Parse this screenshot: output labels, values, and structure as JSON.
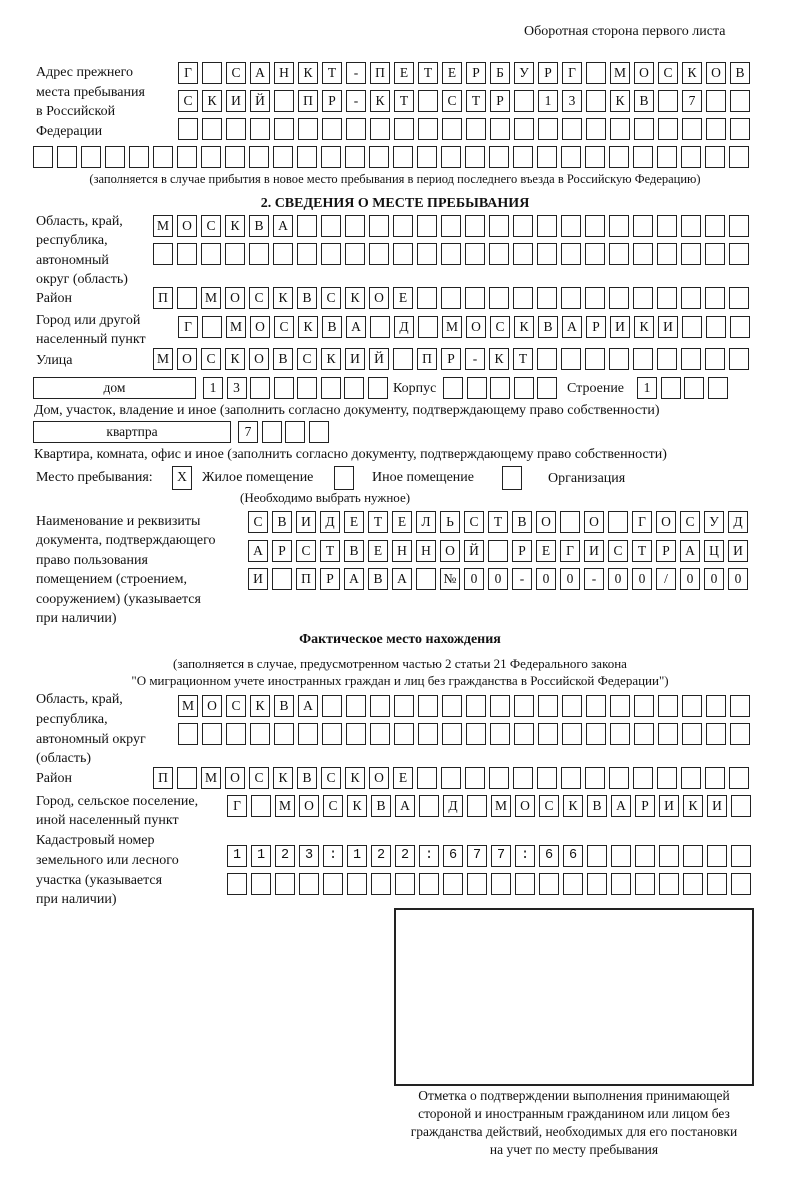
{
  "header": {
    "page_side": "Оборотная сторона первого листа"
  },
  "prev_address": {
    "label": [
      "Адрес прежнего",
      "места пребывания",
      "в Российской",
      "Федерации"
    ],
    "rows": [
      "Г САНКТ-ПЕТЕРБУРГ МОСКОВ",
      "СКИЙ ПР-КТ СТР 13 КВ 7  ",
      "                        ",
      "                              "
    ],
    "note": "(заполняется в случае прибытия в новое место пребывания в период последнего въезда в Российскую Федерацию)"
  },
  "stay": {
    "title": "2. СВЕДЕНИЯ О МЕСТЕ ПРЕБЫВАНИЯ",
    "region_label": [
      "Область, край,",
      "республика,",
      "автономный",
      "округ (область)"
    ],
    "region_rows": [
      "МОСКВА                   ",
      "                         "
    ],
    "district_label": "Район",
    "district": "П МОСКВСКОЕ              ",
    "city_label": [
      "Город или другой",
      "населенный пункт"
    ],
    "city": "Г МОСКВА Д МОСКВАРИКИ   ",
    "street_label": "Улица",
    "street": "МОСКОВСКИЙ ПР-КТ         ",
    "house_type": "дом",
    "house": "13      ",
    "korpus_label": "Корпус",
    "korpus": "     ",
    "building_label": "Строение",
    "building": "1   ",
    "house_note": "Дом, участок, владение и иное (заполнить согласно документу, подтверждающему право собственности)",
    "flat_type": "квартпра",
    "flat": "7   ",
    "flat_note": "Квартира, комната, офис и иное (заполнить согласно документу, подтверждающему право собственности)",
    "place_label": "Место пребывания:",
    "place_options": [
      {
        "label": "Жилое помещение",
        "mark": "X",
        "checked": true
      },
      {
        "label": "Иное помещение",
        "mark": "",
        "checked": false
      },
      {
        "label": "Организация",
        "mark": "",
        "checked": false
      }
    ],
    "place_note": "(Необходимо выбрать нужное)",
    "doc_label": [
      "Наименование и реквизиты",
      "документа, подтверждающего",
      "право пользования",
      "помещением (строением,",
      "сооружением) (указывается",
      "при наличии)"
    ],
    "doc_rows": [
      "СВИДЕТЕЛЬСТВО О ГОСУД",
      "АРСТВЕННОЙ РЕГИСТРАЦИ",
      "И ПРАВА №00-00-00/000"
    ]
  },
  "actual": {
    "title": "Фактическое место нахождения",
    "note": [
      "(заполняется в случае, предусмотренном частью 2 статьи 21 Федерального закона",
      "\"О миграционном учете иностранных граждан и лиц без гражданства в Российской Федерации\")"
    ],
    "region_label": [
      "Область, край,",
      "республика,",
      "автономный округ",
      "(область)"
    ],
    "region_rows": [
      "МОСКВА                  ",
      "                        "
    ],
    "district_label": "Район",
    "district": "П МОСКВСКОЕ              ",
    "city_label": [
      "Город, сельское поселение,",
      "иной населенный пункт"
    ],
    "city": "Г МОСКВА Д МОСКВАРИКИ ",
    "cadastre_label": [
      "Кадастровый номер",
      "земельного или лесного",
      "участка (указывается",
      "при наличии)"
    ],
    "cadastre_rows": [
      "1123:122:677:66       ",
      "                      "
    ]
  },
  "confirmation": {
    "caption": [
      "Отметка о подтверждении выполнения принимающей",
      "стороной и иностранным гражданином или лицом без",
      "гражданства действий, необходимых для его постановки",
      "на учет по месту пребывания"
    ]
  }
}
